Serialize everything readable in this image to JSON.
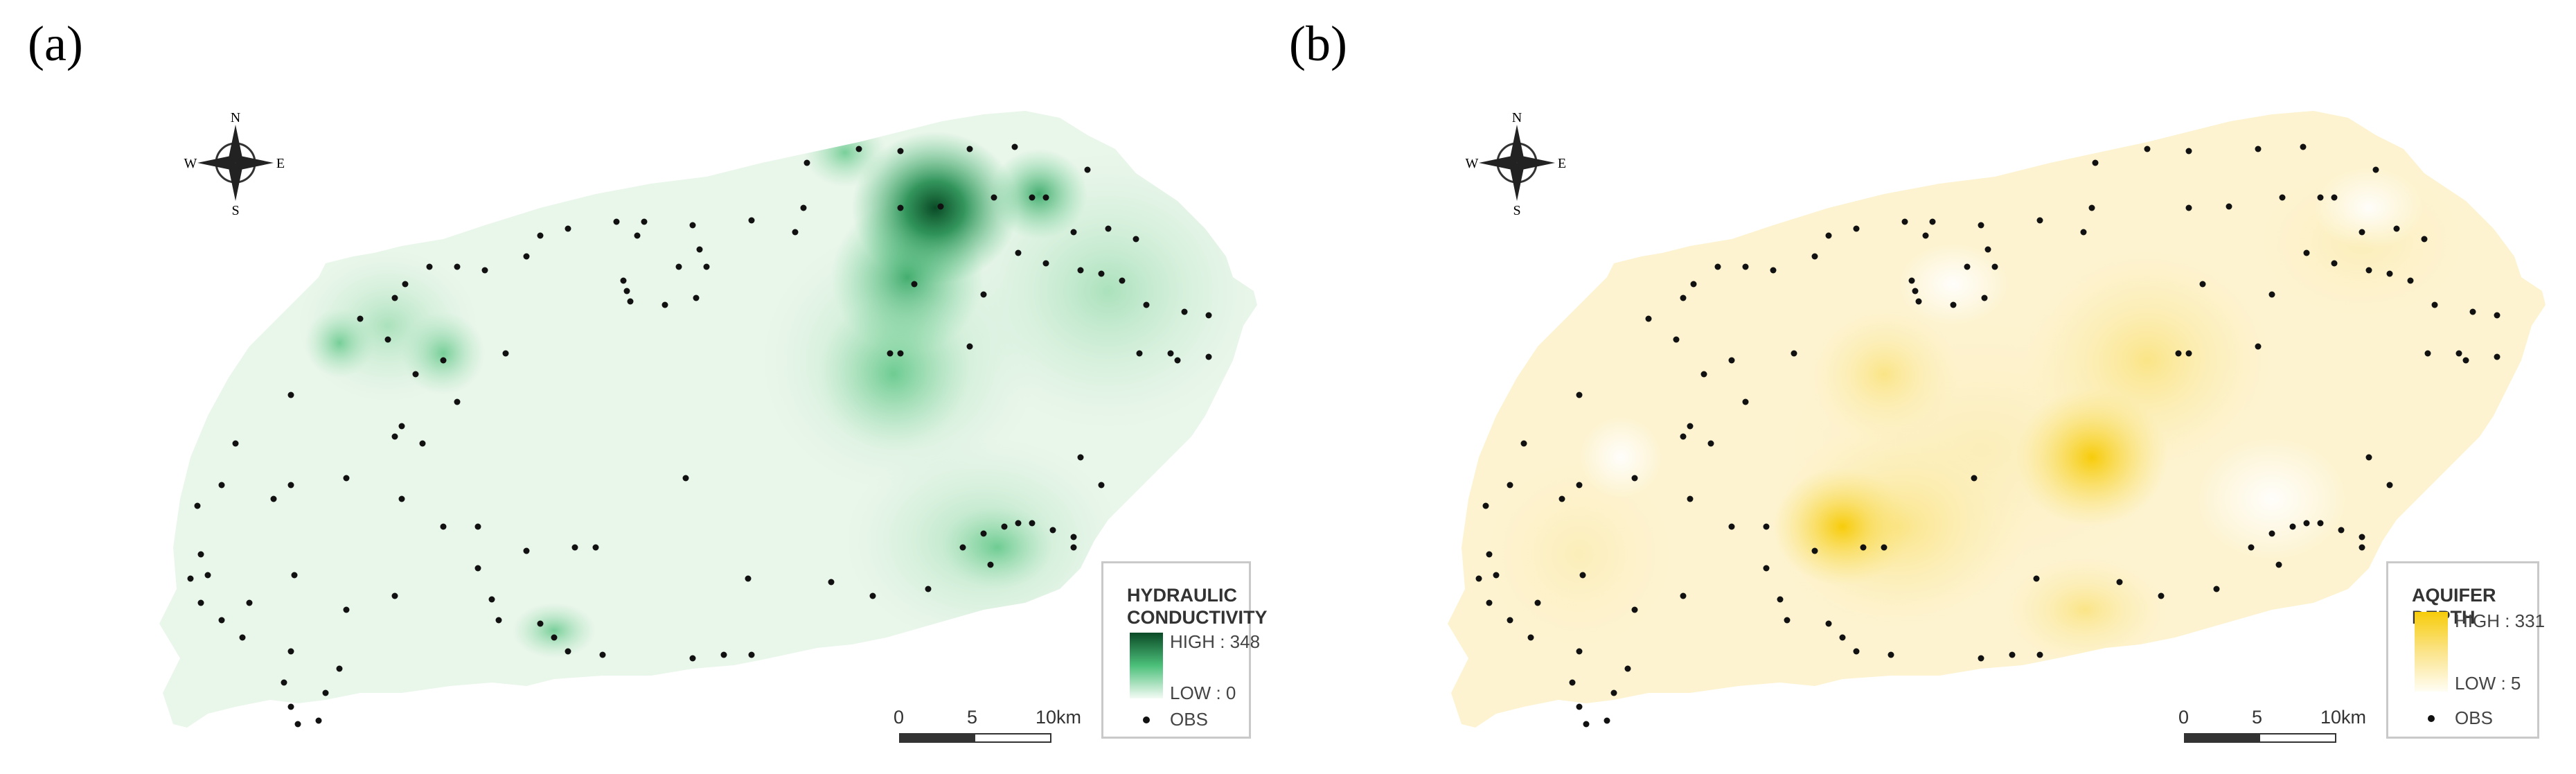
{
  "panels": [
    {
      "label": "(a)",
      "legend": {
        "title_line1": "HYDRAULIC",
        "title_line2": "CONDUCTIVITY",
        "high": "HIGH : 348",
        "low": "LOW : 0",
        "obs": "OBS"
      },
      "color_high": "#0a5c2e",
      "color_mid": "#4cc07a",
      "color_low": "#f3faf3"
    },
    {
      "label": "(b)",
      "legend": {
        "title_line1": "AQUIFER DEPTH",
        "title_line2": "",
        "high": "HIGH : 331",
        "low": "LOW : 5",
        "obs": "OBS"
      },
      "color_high": "#f7d21a",
      "color_mid": "#fbe78a",
      "color_low": "#fefbf0"
    }
  ],
  "compass": {
    "n": "N",
    "s": "S",
    "e": "E",
    "w": "W"
  },
  "scale_bar": {
    "zero": "0",
    "mid": "5",
    "end": "10km"
  }
}
